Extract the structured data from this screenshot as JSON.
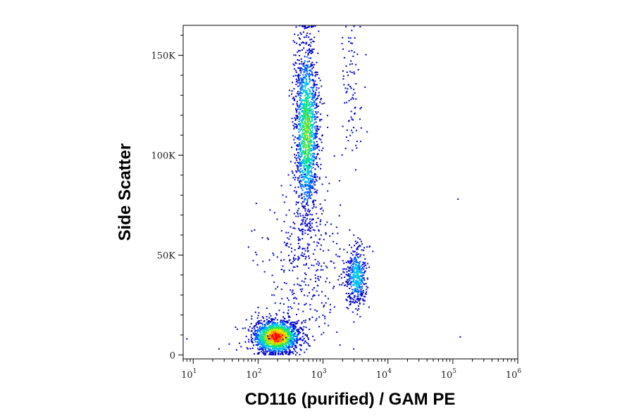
{
  "chart_data": {
    "type": "scatter",
    "subtype": "flow-cytometry density dot plot",
    "title": "",
    "xlabel": "CD116 (purified) / GAM PE",
    "ylabel": "Side Scatter",
    "x_scale": "log",
    "xlim": [
      7,
      1000000
    ],
    "ylim": [
      -2000,
      165000
    ],
    "grid": false,
    "legend": "none",
    "x_ticks": [
      {
        "base": "10",
        "exp": "1",
        "value": 10
      },
      {
        "base": "10",
        "exp": "2",
        "value": 100
      },
      {
        "base": "10",
        "exp": "3",
        "value": 1000
      },
      {
        "base": "10",
        "exp": "4",
        "value": 10000
      },
      {
        "base": "10",
        "exp": "5",
        "value": 100000
      },
      {
        "base": "10",
        "exp": "6",
        "value": 1000000
      }
    ],
    "y_ticks": [
      {
        "label": "0",
        "value": 0
      },
      {
        "label": "50K",
        "value": 50000
      },
      {
        "label": "100K",
        "value": 100000
      },
      {
        "label": "150K",
        "value": 150000
      }
    ],
    "density_colors": [
      "#0000cc",
      "#0060ff",
      "#00bfff",
      "#00e0a0",
      "#40e040",
      "#c8f000",
      "#ffd800",
      "#ff7800",
      "#ff0000"
    ],
    "populations": [
      {
        "x_center": 190,
        "y_center": 9000,
        "x_spread_log": 0.18,
        "y_spread": 4200,
        "count": 1600,
        "peak_density": 1.0
      },
      {
        "x_center": 560,
        "y_center": 112000,
        "x_spread_log": 0.09,
        "y_spread": 23000,
        "count": 1500,
        "peak_density": 0.55
      },
      {
        "x_center": 3300,
        "y_center": 39000,
        "x_spread_log": 0.08,
        "y_spread": 7500,
        "count": 450,
        "peak_density": 0.35
      },
      {
        "x_center": 2800,
        "y_center": 130000,
        "x_spread_log": 0.09,
        "y_spread": 20000,
        "count": 90,
        "peak_density": 0.08
      },
      {
        "x_center": 500,
        "y_center": 45000,
        "x_spread_log": 0.3,
        "y_spread": 20000,
        "count": 350,
        "peak_density": 0.05
      }
    ],
    "outliers": [
      {
        "x": 120000,
        "y": 78000
      },
      {
        "x": 130000,
        "y": 9000
      },
      {
        "x": 8,
        "y": 8000
      },
      {
        "x": 25,
        "y": 3000
      }
    ]
  }
}
